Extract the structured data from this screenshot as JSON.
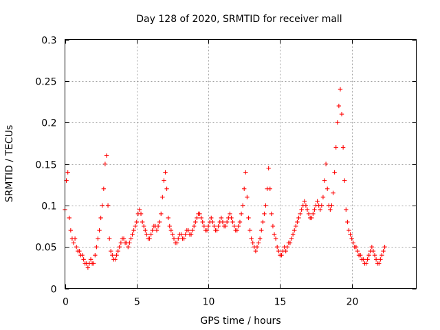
{
  "chart_data": {
    "type": "scatter",
    "title": "Day 128 of 2020, SRMTID for receiver mall",
    "xlabel": "GPS time / hours",
    "ylabel": "SRMTID / TECUs",
    "xlim": [
      0,
      24.5
    ],
    "ylim": [
      0,
      0.3
    ],
    "x_ticks": [
      0,
      5,
      10,
      15,
      20
    ],
    "x_tick_labels": [
      "0",
      "5",
      "10",
      "15",
      "20"
    ],
    "y_ticks": [
      0,
      0.05,
      0.1,
      0.15,
      0.2,
      0.25,
      0.3
    ],
    "y_tick_labels": [
      "0",
      "0.05",
      "0.1",
      "0.15",
      "0.2",
      "0.25",
      "0.3"
    ],
    "grid": true,
    "marker": "+",
    "color": "#ff0000",
    "series": [
      {
        "name": "SRMTID",
        "x_start": 0.0,
        "x_step": 0.1,
        "values": [
          0.095,
          0.13,
          0.14,
          0.085,
          0.07,
          0.06,
          0.055,
          0.06,
          0.05,
          0.045,
          0.045,
          0.04,
          0.04,
          0.035,
          0.03,
          0.03,
          0.025,
          0.03,
          0.035,
          0.03,
          0.03,
          0.04,
          0.05,
          0.06,
          0.07,
          0.085,
          0.1,
          0.12,
          0.15,
          0.16,
          0.1,
          0.06,
          0.045,
          0.04,
          0.035,
          0.035,
          0.04,
          0.045,
          0.05,
          0.055,
          0.06,
          0.06,
          0.055,
          0.055,
          0.05,
          0.055,
          0.06,
          0.065,
          0.07,
          0.075,
          0.08,
          0.09,
          0.095,
          0.09,
          0.08,
          0.075,
          0.07,
          0.065,
          0.06,
          0.06,
          0.065,
          0.07,
          0.075,
          0.075,
          0.07,
          0.075,
          0.08,
          0.09,
          0.11,
          0.13,
          0.14,
          0.12,
          0.085,
          0.075,
          0.07,
          0.065,
          0.06,
          0.055,
          0.055,
          0.06,
          0.065,
          0.065,
          0.06,
          0.06,
          0.065,
          0.07,
          0.07,
          0.065,
          0.065,
          0.07,
          0.075,
          0.08,
          0.085,
          0.09,
          0.09,
          0.085,
          0.08,
          0.075,
          0.07,
          0.07,
          0.075,
          0.08,
          0.085,
          0.08,
          0.075,
          0.07,
          0.07,
          0.075,
          0.08,
          0.085,
          0.08,
          0.075,
          0.075,
          0.08,
          0.085,
          0.09,
          0.085,
          0.08,
          0.075,
          0.07,
          0.07,
          0.075,
          0.08,
          0.09,
          0.1,
          0.12,
          0.14,
          0.11,
          0.085,
          0.07,
          0.06,
          0.055,
          0.05,
          0.045,
          0.05,
          0.055,
          0.06,
          0.07,
          0.08,
          0.09,
          0.1,
          0.12,
          0.145,
          0.12,
          0.09,
          0.075,
          0.065,
          0.06,
          0.05,
          0.045,
          0.04,
          0.04,
          0.045,
          0.05,
          0.045,
          0.05,
          0.055,
          0.055,
          0.06,
          0.065,
          0.07,
          0.075,
          0.08,
          0.085,
          0.09,
          0.095,
          0.1,
          0.105,
          0.1,
          0.095,
          0.09,
          0.085,
          0.085,
          0.09,
          0.095,
          0.1,
          0.105,
          0.1,
          0.095,
          0.1,
          0.11,
          0.13,
          0.15,
          0.12,
          0.1,
          0.095,
          0.1,
          0.115,
          0.14,
          0.17,
          0.2,
          0.22,
          0.24,
          0.21,
          0.17,
          0.13,
          0.095,
          0.08,
          0.07,
          0.065,
          0.06,
          0.055,
          0.05,
          0.05,
          0.045,
          0.04,
          0.04,
          0.035,
          0.035,
          0.03,
          0.03,
          0.035,
          0.04,
          0.045,
          0.05,
          0.045,
          0.04,
          0.035,
          0.03,
          0.03,
          0.035,
          0.04,
          0.045,
          0.05
        ]
      }
    ]
  }
}
